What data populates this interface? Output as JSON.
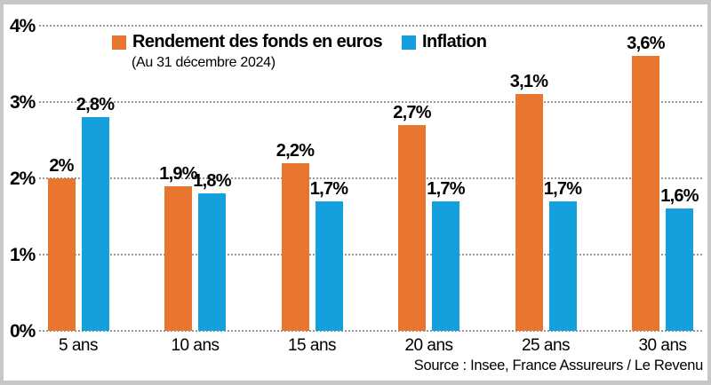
{
  "chart_data": {
    "type": "bar",
    "categories": [
      "5 ans",
      "10 ans",
      "15 ans",
      "20 ans",
      "25 ans",
      "30 ans"
    ],
    "series": [
      {
        "name": "Rendement des fonds en euros",
        "color": "#E9762F",
        "values": [
          2.0,
          1.9,
          2.2,
          2.7,
          3.1,
          3.6
        ],
        "labels": [
          "2%",
          "1,9%",
          "2,2%",
          "2,7%",
          "3,1%",
          "3,6%"
        ]
      },
      {
        "name": "Inflation",
        "color": "#14A0DC",
        "values": [
          2.8,
          1.8,
          1.7,
          1.7,
          1.7,
          1.6
        ],
        "labels": [
          "2,8%",
          "1,8%",
          "1,7%",
          "1,7%",
          "1,7%",
          "1,6%"
        ]
      }
    ],
    "subtitle": "(Au 31 décembre 2024)",
    "y_ticks": [
      "0%",
      "1%",
      "2%",
      "3%",
      "4%"
    ],
    "ylim": [
      0,
      4
    ],
    "grid": "dotted horizontal",
    "legend_position": "top",
    "source": "Source : Insee, France Assureurs / Le Revenu"
  }
}
